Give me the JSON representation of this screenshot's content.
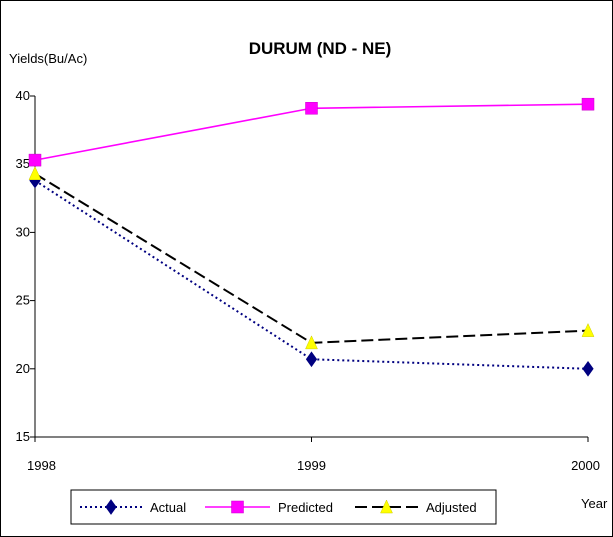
{
  "chart_data": {
    "type": "line",
    "title": "DURUM (ND - NE)",
    "ylabel": "Yields(Bu/Ac)",
    "xlabel": "Year",
    "x": [
      "1998",
      "1999",
      "2000"
    ],
    "xlim": [
      1998,
      2000
    ],
    "ylim": [
      15,
      40
    ],
    "yticks": [
      "15",
      "20",
      "25",
      "30",
      "35",
      "40"
    ],
    "grid": false,
    "legend_position": "bottom",
    "series": [
      {
        "name": "Actual",
        "values": [
          33.8,
          20.7,
          20.0
        ],
        "color": "#000080",
        "line_style": "dotted",
        "marker": "diamond"
      },
      {
        "name": "Predicted",
        "values": [
          35.3,
          39.1,
          39.4
        ],
        "color": "#ff00ff",
        "line_style": "solid",
        "marker": "square"
      },
      {
        "name": "Adjusted",
        "values": [
          34.3,
          21.9,
          22.8
        ],
        "color": "#000000",
        "marker_color": "#ffff00",
        "line_style": "dashed",
        "marker": "triangle"
      }
    ]
  }
}
